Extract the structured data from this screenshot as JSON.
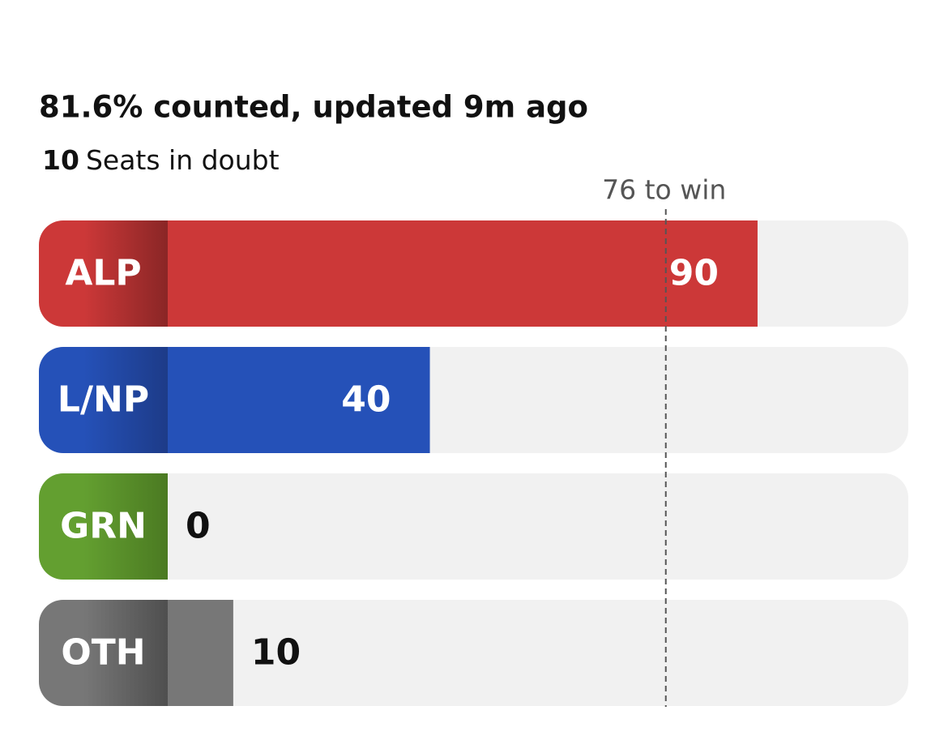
{
  "chart_data": {
    "type": "bar",
    "title": "81.6% counted, updated 9m ago",
    "seats_in_doubt": {
      "value": 10,
      "label": "Seats in doubt"
    },
    "threshold": {
      "value": 76,
      "label": "76 to win"
    },
    "categories": [
      "ALP",
      "L/NP",
      "GRN",
      "OTH"
    ],
    "values": [
      90,
      40,
      0,
      10
    ],
    "colors": [
      "#cc3838",
      "#2551b8",
      "#639f30",
      "#777777"
    ],
    "label_colors": [
      "#8a2626",
      "#1d3b88",
      "#4b7a22",
      "#4f4f4f"
    ],
    "xlim": [
      0,
      113
    ]
  }
}
